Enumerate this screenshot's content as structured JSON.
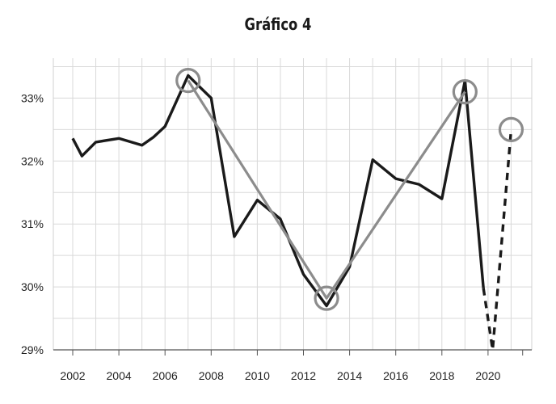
{
  "title": "Gráfico 4",
  "chart_data": {
    "type": "line",
    "title": "Gráfico 4",
    "xlabel": "",
    "ylabel": "",
    "xlim": [
      2001.8,
      2021.5
    ],
    "ylim": [
      29,
      33.55
    ],
    "x_ticks": [
      2002,
      2004,
      2006,
      2008,
      2010,
      2012,
      2014,
      2016,
      2018,
      2020
    ],
    "x_tick_labels": [
      "2002",
      "2004",
      "2006",
      "2008",
      "2010",
      "2012",
      "2014",
      "2016",
      "2018",
      "2020"
    ],
    "y_ticks": [
      29,
      30,
      31,
      32,
      33
    ],
    "y_tick_labels": [
      "29%",
      "30%",
      "31%",
      "32%",
      "33%"
    ],
    "grid": true,
    "series": [
      {
        "style": "solid",
        "color": "#1a1a1a",
        "points": [
          [
            2002.0,
            32.36
          ],
          [
            2002.4,
            32.08
          ],
          [
            2003.0,
            32.3
          ],
          [
            2004.0,
            32.36
          ],
          [
            2005.0,
            32.25
          ],
          [
            2005.5,
            32.38
          ],
          [
            2006.0,
            32.55
          ],
          [
            2007.0,
            33.36
          ],
          [
            2007.5,
            33.18
          ],
          [
            2008.0,
            33.0
          ],
          [
            2009.0,
            30.8
          ],
          [
            2010.0,
            31.38
          ],
          [
            2011.0,
            31.08
          ],
          [
            2012.0,
            30.2
          ],
          [
            2013.0,
            29.7
          ],
          [
            2014.0,
            30.32
          ],
          [
            2015.0,
            32.02
          ],
          [
            2016.0,
            31.72
          ],
          [
            2017.0,
            31.63
          ],
          [
            2018.0,
            31.4
          ],
          [
            2019.0,
            33.28
          ],
          [
            2019.8,
            29.98
          ]
        ]
      },
      {
        "style": "dashed",
        "color": "#1a1a1a",
        "points": [
          [
            2019.8,
            29.98
          ],
          [
            2020.2,
            29.0
          ],
          [
            2021.0,
            32.5
          ]
        ]
      },
      {
        "style": "trend",
        "color": "#8c8c8c",
        "points": [
          [
            2007.0,
            33.28
          ],
          [
            2013.0,
            29.82
          ],
          [
            2019.0,
            33.1
          ]
        ]
      }
    ],
    "markers": [
      {
        "shape": "circle",
        "x": 2007.0,
        "y": 33.28,
        "color": "#8c8c8c"
      },
      {
        "shape": "circle",
        "x": 2013.0,
        "y": 29.82,
        "color": "#8c8c8c"
      },
      {
        "shape": "circle",
        "x": 2019.0,
        "y": 33.1,
        "color": "#8c8c8c"
      },
      {
        "shape": "circle",
        "x": 2021.0,
        "y": 32.5,
        "color": "#8c8c8c"
      }
    ]
  }
}
